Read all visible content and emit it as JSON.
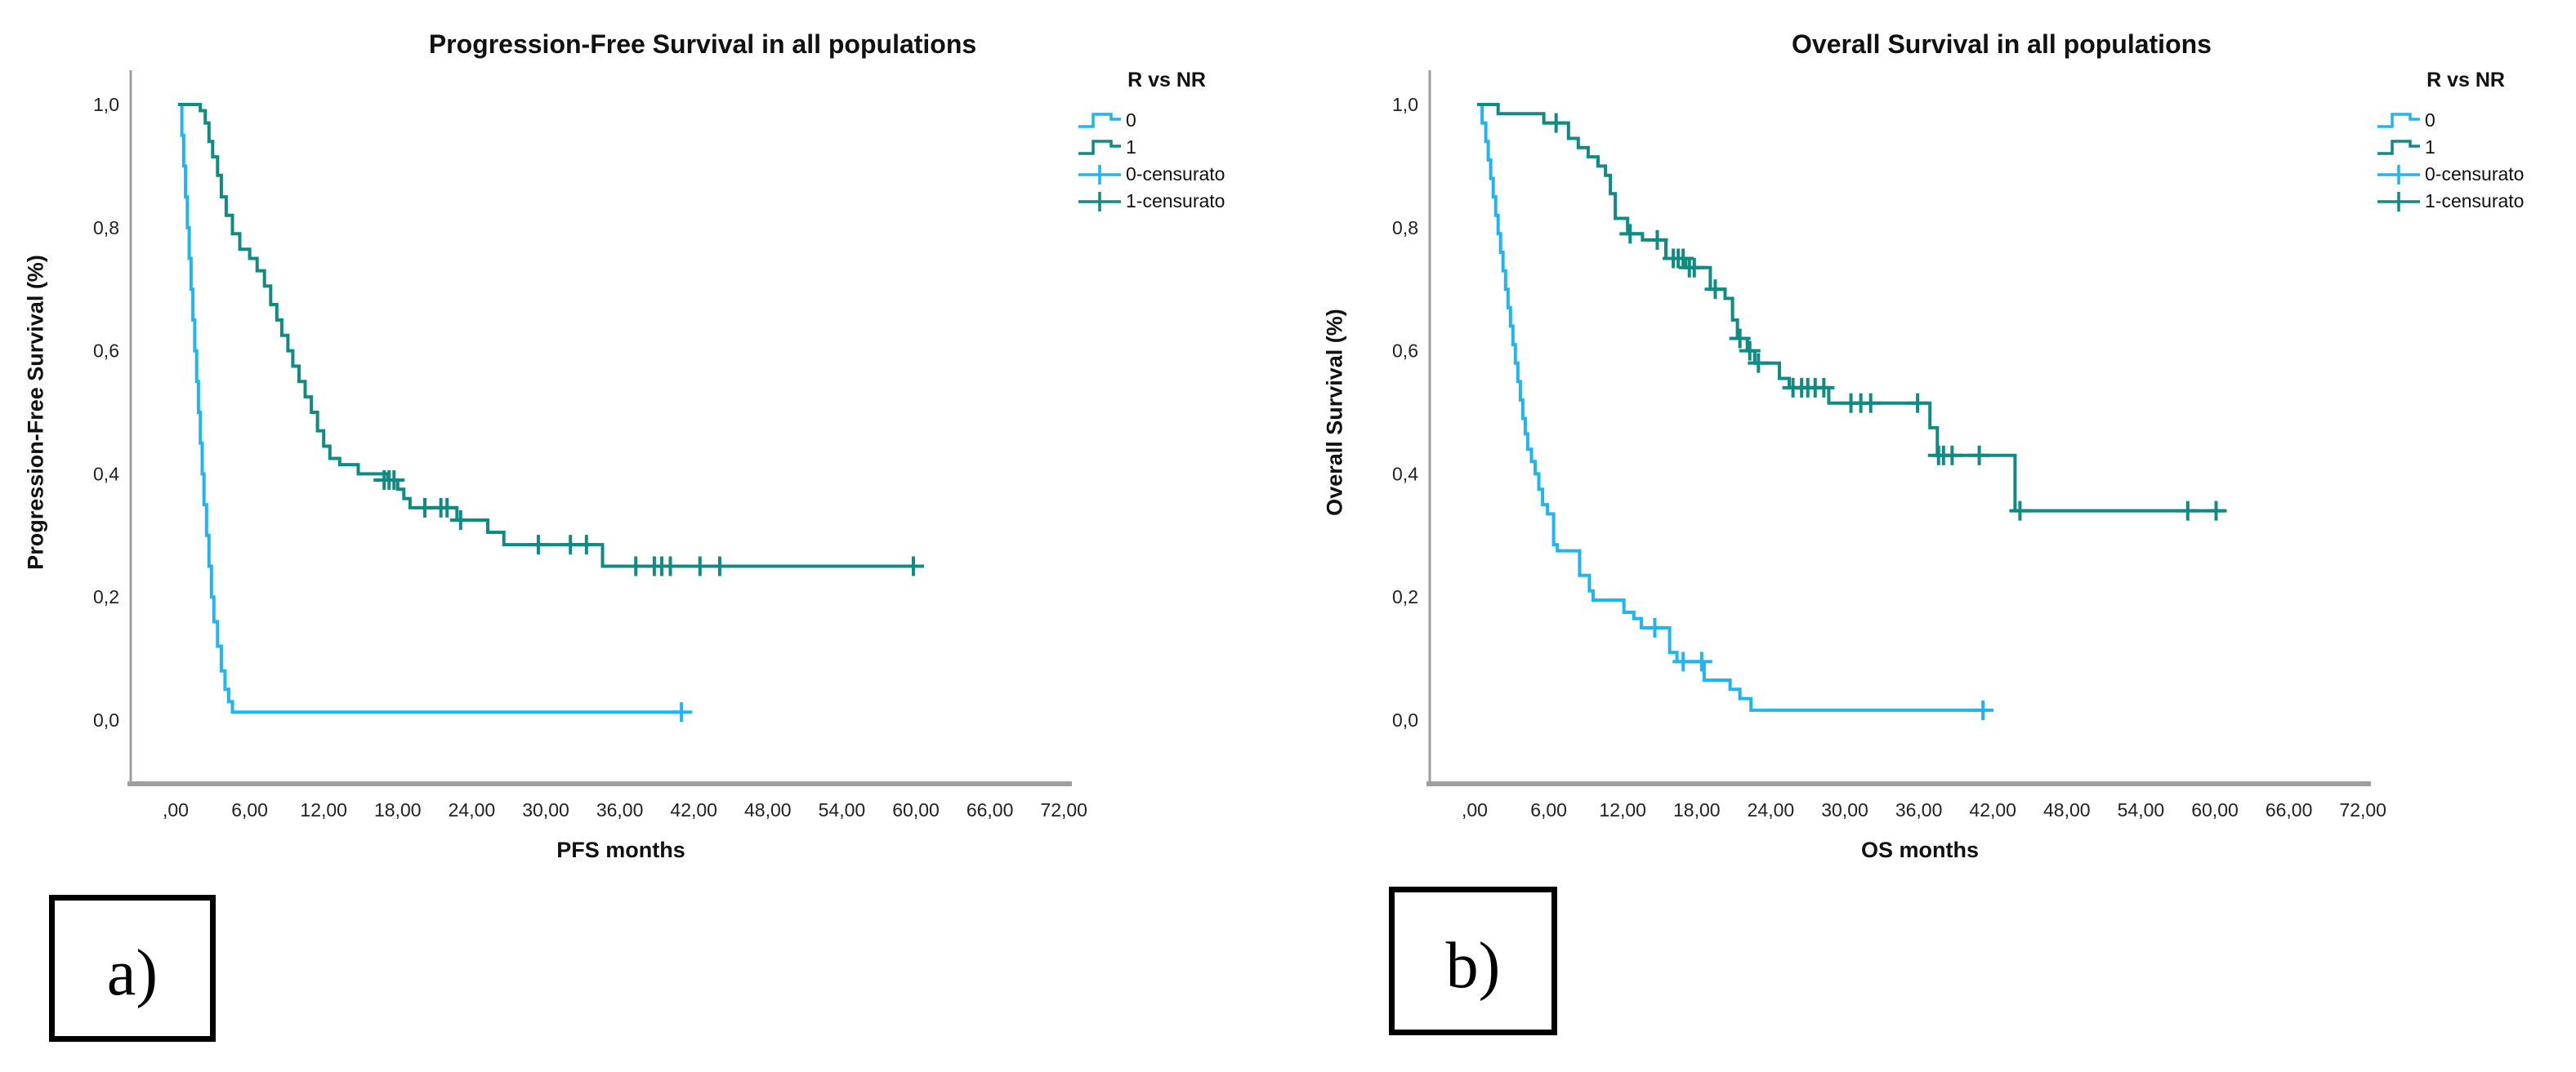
{
  "page": {
    "background": "#ffffff",
    "axis_color": "#9e9e9e",
    "text_color": "#111111"
  },
  "panel_labels": [
    {
      "label": "a)"
    },
    {
      "label": "b)"
    }
  ],
  "chart_data": [
    {
      "type": "line",
      "subtype": "kaplan-meier-step",
      "title": "Progression-Free Survival in all populations",
      "xlabel": "PFS months",
      "ylabel": "Progression-Free Survival (%)",
      "xlim": [
        0,
        72
      ],
      "ylim": [
        0.0,
        1.0
      ],
      "grid": false,
      "x_ticks": [
        ",00",
        "6,00",
        "12,00",
        "18,00",
        "24,00",
        "30,00",
        "36,00",
        "42,00",
        "48,00",
        "54,00",
        "60,00",
        "66,00",
        "72,00"
      ],
      "x_tick_values": [
        0,
        6,
        12,
        18,
        24,
        30,
        36,
        42,
        48,
        54,
        60,
        66,
        72
      ],
      "y_ticks": [
        "1,0",
        "0,8",
        "0,6",
        "0,4",
        "0,2",
        "0,0"
      ],
      "y_tick_values": [
        1.0,
        0.8,
        0.6,
        0.4,
        0.2,
        0.0
      ],
      "legend": {
        "title": "R vs NR",
        "position": "right",
        "items": [
          {
            "label": "0",
            "type": "line",
            "color": "#1FB5F2"
          },
          {
            "label": "1",
            "type": "line",
            "color": "#0E8C83"
          },
          {
            "label": "0-censurato",
            "type": "censor",
            "color": "#1FB5F2"
          },
          {
            "label": "1-censurato",
            "type": "censor",
            "color": "#0E8C83"
          }
        ]
      },
      "series": [
        {
          "name": "0",
          "color": "#1FB5F2",
          "points": [
            [
              0.2,
              1.0
            ],
            [
              0.5,
              0.95
            ],
            [
              0.65,
              0.9
            ],
            [
              0.8,
              0.85
            ],
            [
              0.95,
              0.8
            ],
            [
              1.1,
              0.75
            ],
            [
              1.25,
              0.7
            ],
            [
              1.4,
              0.65
            ],
            [
              1.55,
              0.6
            ],
            [
              1.7,
              0.55
            ],
            [
              1.85,
              0.5
            ],
            [
              2.0,
              0.45
            ],
            [
              2.15,
              0.4
            ],
            [
              2.3,
              0.35
            ],
            [
              2.5,
              0.3
            ],
            [
              2.7,
              0.25
            ],
            [
              2.9,
              0.2
            ],
            [
              3.1,
              0.16
            ],
            [
              3.4,
              0.12
            ],
            [
              3.7,
              0.08
            ],
            [
              4.0,
              0.05
            ],
            [
              4.3,
              0.03
            ],
            [
              4.6,
              0.013
            ],
            [
              41.0,
              0.013
            ]
          ],
          "censors": [
            [
              41.0,
              0.013
            ]
          ]
        },
        {
          "name": "1",
          "color": "#0E8C83",
          "points": [
            [
              0.2,
              1.0
            ],
            [
              2.0,
              0.99
            ],
            [
              2.4,
              0.97
            ],
            [
              2.7,
              0.94
            ],
            [
              3.0,
              0.915
            ],
            [
              3.4,
              0.885
            ],
            [
              3.7,
              0.85
            ],
            [
              4.1,
              0.82
            ],
            [
              4.6,
              0.79
            ],
            [
              5.2,
              0.765
            ],
            [
              6.0,
              0.75
            ],
            [
              6.6,
              0.73
            ],
            [
              7.2,
              0.705
            ],
            [
              7.7,
              0.675
            ],
            [
              8.2,
              0.65
            ],
            [
              8.6,
              0.625
            ],
            [
              9.1,
              0.6
            ],
            [
              9.5,
              0.575
            ],
            [
              10.0,
              0.55
            ],
            [
              10.5,
              0.525
            ],
            [
              11.0,
              0.5
            ],
            [
              11.5,
              0.47
            ],
            [
              12.0,
              0.445
            ],
            [
              12.5,
              0.425
            ],
            [
              13.3,
              0.415
            ],
            [
              14.8,
              0.4
            ],
            [
              17.2,
              0.39
            ],
            [
              18.0,
              0.375
            ],
            [
              18.5,
              0.36
            ],
            [
              19.0,
              0.345
            ],
            [
              22.8,
              0.325
            ],
            [
              25.3,
              0.305
            ],
            [
              26.6,
              0.285
            ],
            [
              34.6,
              0.25
            ],
            [
              60.0,
              0.25
            ]
          ],
          "censors": [
            [
              16.9,
              0.39
            ],
            [
              17.3,
              0.39
            ],
            [
              17.7,
              0.39
            ],
            [
              20.2,
              0.345
            ],
            [
              21.5,
              0.345
            ],
            [
              22.0,
              0.345
            ],
            [
              23.1,
              0.325
            ],
            [
              29.4,
              0.285
            ],
            [
              32.0,
              0.285
            ],
            [
              33.3,
              0.285
            ],
            [
              37.3,
              0.25
            ],
            [
              38.8,
              0.25
            ],
            [
              39.4,
              0.25
            ],
            [
              40.1,
              0.25
            ],
            [
              42.5,
              0.25
            ],
            [
              44.1,
              0.25
            ],
            [
              59.8,
              0.25
            ]
          ]
        }
      ]
    },
    {
      "type": "line",
      "subtype": "kaplan-meier-step",
      "title": "Overall Survival in all populations",
      "xlabel": "OS months",
      "ylabel": "Overall Survival (%)",
      "xlim": [
        0,
        72
      ],
      "ylim": [
        0.0,
        1.0
      ],
      "grid": false,
      "x_ticks": [
        ",00",
        "6,00",
        "12,00",
        "18,00",
        "24,00",
        "30,00",
        "36,00",
        "42,00",
        "48,00",
        "54,00",
        "60,00",
        "66,00",
        "72,00"
      ],
      "x_tick_values": [
        0,
        6,
        12,
        18,
        24,
        30,
        36,
        42,
        48,
        54,
        60,
        66,
        72
      ],
      "y_ticks": [
        "1,0",
        "0,8",
        "0,6",
        "0,4",
        "0,2",
        "0,0"
      ],
      "y_tick_values": [
        1.0,
        0.8,
        0.6,
        0.4,
        0.2,
        0.0
      ],
      "legend": {
        "title": "R vs NR",
        "position": "right",
        "items": [
          {
            "label": "0",
            "type": "line",
            "color": "#1FB5F2"
          },
          {
            "label": "1",
            "type": "line",
            "color": "#0E8C83"
          },
          {
            "label": "0-censurato",
            "type": "censor",
            "color": "#1FB5F2"
          },
          {
            "label": "1-censurato",
            "type": "censor",
            "color": "#0E8C83"
          }
        ]
      },
      "series": [
        {
          "name": "0",
          "color": "#1FB5F2",
          "points": [
            [
              0.2,
              1.0
            ],
            [
              0.6,
              0.97
            ],
            [
              0.9,
              0.94
            ],
            [
              1.1,
              0.91
            ],
            [
              1.3,
              0.88
            ],
            [
              1.5,
              0.85
            ],
            [
              1.7,
              0.82
            ],
            [
              1.9,
              0.79
            ],
            [
              2.1,
              0.76
            ],
            [
              2.3,
              0.73
            ],
            [
              2.5,
              0.7
            ],
            [
              2.7,
              0.67
            ],
            [
              2.9,
              0.64
            ],
            [
              3.1,
              0.61
            ],
            [
              3.3,
              0.58
            ],
            [
              3.5,
              0.55
            ],
            [
              3.7,
              0.52
            ],
            [
              3.9,
              0.49
            ],
            [
              4.1,
              0.465
            ],
            [
              4.3,
              0.44
            ],
            [
              4.6,
              0.42
            ],
            [
              4.9,
              0.4
            ],
            [
              5.2,
              0.375
            ],
            [
              5.5,
              0.35
            ],
            [
              5.9,
              0.335
            ],
            [
              6.4,
              0.285
            ],
            [
              6.7,
              0.275
            ],
            [
              8.5,
              0.235
            ],
            [
              9.3,
              0.21
            ],
            [
              9.6,
              0.195
            ],
            [
              12.1,
              0.175
            ],
            [
              12.9,
              0.165
            ],
            [
              13.5,
              0.15
            ],
            [
              15.8,
              0.11
            ],
            [
              16.4,
              0.095
            ],
            [
              18.6,
              0.065
            ],
            [
              20.7,
              0.05
            ],
            [
              21.5,
              0.035
            ],
            [
              22.4,
              0.016
            ],
            [
              41.2,
              0.016
            ]
          ],
          "censors": [
            [
              14.6,
              0.15
            ],
            [
              16.9,
              0.095
            ],
            [
              18.4,
              0.095
            ],
            [
              41.2,
              0.016
            ]
          ]
        },
        {
          "name": "1",
          "color": "#0E8C83",
          "points": [
            [
              0.2,
              1.0
            ],
            [
              1.9,
              0.985
            ],
            [
              5.6,
              0.97
            ],
            [
              7.6,
              0.945
            ],
            [
              8.4,
              0.93
            ],
            [
              9.2,
              0.915
            ],
            [
              10.0,
              0.9
            ],
            [
              10.6,
              0.885
            ],
            [
              11.0,
              0.855
            ],
            [
              11.4,
              0.815
            ],
            [
              12.4,
              0.79
            ],
            [
              13.6,
              0.78
            ],
            [
              15.5,
              0.75
            ],
            [
              17.1,
              0.735
            ],
            [
              19.1,
              0.7
            ],
            [
              20.3,
              0.685
            ],
            [
              20.9,
              0.65
            ],
            [
              21.3,
              0.62
            ],
            [
              22.1,
              0.6
            ],
            [
              22.7,
              0.58
            ],
            [
              24.7,
              0.555
            ],
            [
              25.5,
              0.54
            ],
            [
              28.7,
              0.515
            ],
            [
              36.9,
              0.475
            ],
            [
              37.5,
              0.43
            ],
            [
              43.8,
              0.34
            ],
            [
              60.8,
              0.34
            ]
          ],
          "censors": [
            [
              6.6,
              0.97
            ],
            [
              12.6,
              0.79
            ],
            [
              14.8,
              0.78
            ],
            [
              16.1,
              0.75
            ],
            [
              16.5,
              0.75
            ],
            [
              16.9,
              0.75
            ],
            [
              17.4,
              0.735
            ],
            [
              17.8,
              0.735
            ],
            [
              19.5,
              0.7
            ],
            [
              21.5,
              0.62
            ],
            [
              22.3,
              0.6
            ],
            [
              23.0,
              0.58
            ],
            [
              25.8,
              0.54
            ],
            [
              26.5,
              0.54
            ],
            [
              27.0,
              0.54
            ],
            [
              27.6,
              0.54
            ],
            [
              28.3,
              0.54
            ],
            [
              30.5,
              0.515
            ],
            [
              31.3,
              0.515
            ],
            [
              32.1,
              0.515
            ],
            [
              35.9,
              0.515
            ],
            [
              37.6,
              0.43
            ],
            [
              38.0,
              0.43
            ],
            [
              38.7,
              0.43
            ],
            [
              40.9,
              0.43
            ],
            [
              44.2,
              0.34
            ],
            [
              57.8,
              0.34
            ],
            [
              60.1,
              0.34
            ]
          ]
        }
      ]
    }
  ]
}
